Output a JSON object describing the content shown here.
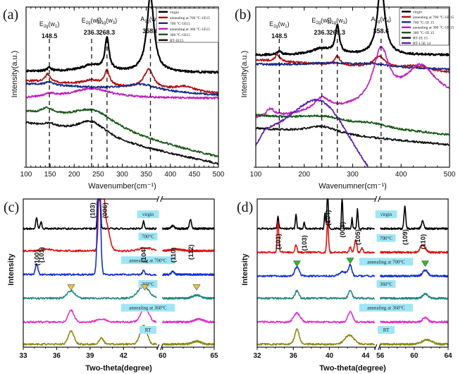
{
  "figure": {
    "panels": [
      "(a)",
      "(b)",
      "(c)",
      "(d)"
    ]
  },
  "chart_data": [
    {
      "id": "a",
      "type": "line",
      "panel_label": "(a)",
      "xlabel": "Wavenumber(cm⁻¹)",
      "ylabel": "Intensity(a.u.)",
      "xlim": [
        100,
        500
      ],
      "xticks": [
        100,
        150,
        200,
        250,
        300,
        350,
        400,
        450,
        500
      ],
      "grid": false,
      "legend_position": "top-right",
      "mode_lines": [
        {
          "x": 148.5,
          "mode": "E2g(w1)",
          "mode_base": "E",
          "mode_sub": "2g",
          "mode_arg": "(w",
          "mode_arg_sub": "1",
          "value": "148.5"
        },
        {
          "x": 236.3,
          "mode": "E2g(w2)",
          "mode_base": "E",
          "mode_sub": "2g",
          "mode_arg": "(w",
          "mode_arg_sub": "2",
          "value": "236.3"
        },
        {
          "x": 268.3,
          "mode": "E1g(w3)",
          "mode_base": "E",
          "mode_sub": "1g",
          "mode_arg": "(w",
          "mode_arg_sub": "3",
          "value": "268.3"
        },
        {
          "x": 358.6,
          "mode": "A1g(w4)",
          "mode_base": "A",
          "mode_sub": "1g",
          "mode_arg": "(w",
          "mode_arg_sub": "4",
          "value": "358.6"
        }
      ],
      "series": [
        {
          "name": "virgin",
          "color": "#000000",
          "baseline": 0.6,
          "peaks": [
            [
              148.5,
              0.02,
              5
            ],
            [
              236.3,
              0.04,
              25
            ],
            [
              268.3,
              0.2,
              5
            ],
            [
              358.6,
              0.48,
              9
            ]
          ],
          "slope": -0.01
        },
        {
          "name": "annealing at 700 °C-1E15",
          "color": "#b01010",
          "baseline": 0.54,
          "peaks": [
            [
              145,
              0.05,
              6
            ],
            [
              236.3,
              0.03,
              20
            ],
            [
              268.3,
              0.09,
              6
            ],
            [
              355,
              0.12,
              12
            ],
            [
              430,
              0.03,
              25
            ]
          ],
          "slope": -0.08
        },
        {
          "name": "700 °C-1E15",
          "color": "#1a2a8a",
          "baseline": 0.52,
          "peaks": [
            [
              148,
              0.02,
              10
            ],
            [
              340,
              0.04,
              40
            ]
          ],
          "slope": -0.07
        },
        {
          "name": "annealing at 360 °C-1E15",
          "color": "#c020c0",
          "baseline": 0.43,
          "peaks": [
            [
              150,
              0.02,
              15
            ],
            [
              236.3,
              0.06,
              50
            ]
          ],
          "slope": 0.0
        },
        {
          "name": "360 °C-1E15",
          "color": "#1a5a1a",
          "baseline": 0.33,
          "peaks": [
            [
              145,
              0.04,
              15
            ],
            [
              240,
              0.12,
              60
            ]
          ],
          "slope": -0.27
        },
        {
          "name": "RT-1E15",
          "color": "#111111",
          "baseline": 0.27,
          "peaks": [
            [
              150,
              0.02,
              15
            ],
            [
              236.3,
              0.1,
              40
            ]
          ],
          "slope": -0.25
        }
      ]
    },
    {
      "id": "b",
      "type": "line",
      "panel_label": "(b)",
      "xlabel": "Wavenumner(cm⁻¹)",
      "ylabel": "Intensity(a.u.)",
      "xlim": [
        100,
        500
      ],
      "xticks": [
        100,
        200,
        300,
        400,
        500
      ],
      "grid": false,
      "legend_position": "top-right",
      "mode_lines": [
        {
          "x": 148.5,
          "mode": "E2g(w1)",
          "mode_base": "E",
          "mode_sub": "2g",
          "mode_arg": "(w",
          "mode_arg_sub": "1",
          "value": "148.5"
        },
        {
          "x": 236.3,
          "mode": "E2g(w2)",
          "mode_base": "E",
          "mode_sub": "2g",
          "mode_arg": "(w",
          "mode_arg_sub": "2",
          "value": "236.3"
        },
        {
          "x": 268.3,
          "mode": "E1g(w3)",
          "mode_base": "E",
          "mode_sub": "1g",
          "mode_arg": "(w",
          "mode_arg_sub": "3",
          "value": "268.3"
        },
        {
          "x": 358.6,
          "mode": "A1g(w4)",
          "mode_base": "A",
          "mode_sub": "1g",
          "mode_arg": "(w",
          "mode_arg_sub": "4",
          "value": "358.6"
        }
      ],
      "series": [
        {
          "name": "virgin",
          "color": "#000000",
          "baseline": 0.7,
          "peaks": [
            [
              148.5,
              0.02,
              5
            ],
            [
              236.3,
              0.04,
              25
            ],
            [
              268.3,
              0.17,
              5
            ],
            [
              358.6,
              0.45,
              9
            ]
          ],
          "slope": 0.0
        },
        {
          "name": "annealing at 700 °C-1E 15",
          "color": "#b01010",
          "baseline": 0.67,
          "peaks": [
            [
              145,
              0.04,
              6
            ],
            [
              268.3,
              0.06,
              6
            ],
            [
              355,
              0.07,
              14
            ],
            [
              430,
              0.03,
              30
            ]
          ],
          "slope": -0.08
        },
        {
          "name": "700 °C-1E 15",
          "color": "#1a2a8a",
          "baseline": 0.64,
          "peaks": [
            [
              250,
              0.02,
              60
            ],
            [
              340,
              0.02,
              40
            ]
          ],
          "slope": -0.03
        },
        {
          "name": "annealing at 360 °C-1E 15",
          "color": "#c020c0",
          "baseline": 0.3,
          "peaks": [
            [
              130,
              0.05,
              10
            ],
            [
              236.3,
              0.08,
              20
            ],
            [
              358.6,
              0.33,
              20
            ],
            [
              440,
              0.22,
              40
            ]
          ],
          "slope": 0.12
        },
        {
          "name": "360 °C-1E 15",
          "color": "#1a5a1a",
          "baseline": 0.32,
          "peaks": [
            [
              240,
              0.04,
              60
            ],
            [
              340,
              0.02,
              30
            ]
          ],
          "slope": -0.12
        },
        {
          "name": "RT-1E 15",
          "color": "#111111",
          "baseline": 0.24,
          "peaks": [
            [
              236.3,
              0.05,
              40
            ]
          ],
          "slope": -0.1
        },
        {
          "name": "RT-1.5E 14",
          "color": "#5a20b0",
          "baseline": 0.05,
          "peaks": [
            [
              236.3,
              0.55,
              95
            ]
          ],
          "slope": -0.55
        }
      ]
    },
    {
      "id": "c",
      "type": "line",
      "panel_label": "(c)",
      "xlabel": "Two-theta(degree)",
      "ylabel": "Intensity",
      "xlim_segments": [
        [
          33,
          45
        ],
        [
          60,
          65
        ]
      ],
      "xticks": [
        33,
        36,
        39,
        42,
        60,
        65
      ],
      "axis_break": true,
      "grid": false,
      "hkl_labels": [
        {
          "x": 34.2,
          "label": "(100)",
          "level": 0.55
        },
        {
          "x": 34.6,
          "label": "(101)",
          "level": 0.57
        },
        {
          "x": 39.2,
          "label": "(103)",
          "level": 0.87
        },
        {
          "x": 40.3,
          "label": "(006)",
          "level": 0.87
        },
        {
          "x": 43.8,
          "label": "(104)",
          "level": 0.57
        },
        {
          "x": 61.0,
          "label": "(110)",
          "level": 0.57
        },
        {
          "x": 62.7,
          "label": "(112)",
          "level": 0.59
        }
      ],
      "markers": [
        {
          "x": 37.3,
          "level": 0.37,
          "color": "#f0c040"
        },
        {
          "x": 43.9,
          "level": 0.37,
          "color": "#f0c040"
        },
        {
          "x": 63.3,
          "level": 0.37,
          "color": "#f0c040"
        }
      ],
      "series": [
        {
          "name": "virgin",
          "label": "virgin",
          "color": "#000000",
          "offset": 0.8,
          "peaks": [
            [
              34.2,
              0.07,
              0.08
            ],
            [
              34.6,
              0.05,
              0.07
            ],
            [
              39.8,
              1.2,
              0.08
            ],
            [
              43.8,
              0.05,
              0.07
            ],
            [
              61.0,
              0.02,
              0.15
            ],
            [
              62.7,
              0.06,
              0.1
            ]
          ]
        },
        {
          "name": "700°C",
          "label": "700°C",
          "color": "#e01010",
          "offset": 0.65,
          "peaks": [
            [
              35,
              0.01,
              0.5
            ],
            [
              40.0,
              1.2,
              0.15
            ],
            [
              40.4,
              0.2,
              0.3
            ],
            [
              44,
              0.02,
              0.6
            ],
            [
              61.3,
              0.01,
              0.6
            ]
          ]
        },
        {
          "name": "annealing at 700°C",
          "label": "annealing at 700°C",
          "color": "#1030d0",
          "offset": 0.49,
          "peaks": [
            [
              34.2,
              0.07,
              0.12
            ],
            [
              39.8,
              0.75,
              0.13
            ],
            [
              43.8,
              0.03,
              0.1
            ],
            [
              61.0,
              0.02,
              0.15
            ]
          ]
        },
        {
          "name": "360°C",
          "label": "360°C",
          "color": "#208a80",
          "offset": 0.33,
          "peaks": [
            [
              37.3,
              0.05,
              0.35
            ],
            [
              43.8,
              0.08,
              0.5
            ],
            [
              63.3,
              0.02,
              0.4
            ]
          ]
        },
        {
          "name": "annealing at 360°C",
          "label": "annealing at 360°C",
          "color": "#e030d0",
          "offset": 0.17,
          "peaks": [
            [
              37.3,
              0.08,
              0.25
            ],
            [
              40.0,
              0.02,
              0.4
            ],
            [
              43.9,
              0.1,
              0.35
            ],
            [
              63.5,
              0.02,
              0.4
            ]
          ]
        },
        {
          "name": "RT",
          "label": "RT",
          "color": "#8a8a10",
          "offset": 0.02,
          "peaks": [
            [
              37.3,
              0.09,
              0.25
            ],
            [
              40.0,
              0.04,
              0.2
            ],
            [
              43.8,
              0.13,
              0.3
            ],
            [
              63.3,
              0.02,
              0.4
            ]
          ]
        }
      ]
    },
    {
      "id": "d",
      "type": "line",
      "panel_label": "(d)",
      "xlabel": "Two-theta(degree)",
      "ylabel": "Intensity",
      "xlim_segments": [
        [
          32,
          45
        ],
        [
          56,
          64
        ]
      ],
      "xticks": [
        32,
        36,
        40,
        44,
        56,
        60,
        64
      ],
      "axis_break": true,
      "grid": false,
      "hkl_labels": [
        {
          "x": 34.3,
          "label": "(101)",
          "level": 0.66
        },
        {
          "x": 37.2,
          "label": "(103)",
          "level": 0.65
        },
        {
          "x": 39.8,
          "label": "(104)",
          "level": 0.82
        },
        {
          "x": 41.4,
          "label": "(008)",
          "level": 0.74
        },
        {
          "x": 43.1,
          "label": "(105)",
          "level": 0.69
        },
        {
          "x": 58.9,
          "label": "(109)",
          "level": 0.69
        },
        {
          "x": 61.0,
          "label": "(110)",
          "level": 0.66
        }
      ],
      "markers": [
        {
          "x": 36.4,
          "level": 0.53,
          "color": "#20c020"
        },
        {
          "x": 42.3,
          "level": 0.55,
          "color": "#20c020"
        },
        {
          "x": 61.3,
          "level": 0.53,
          "color": "#20c020"
        }
      ],
      "series": [
        {
          "name": "virgin",
          "label": "virgin",
          "color": "#000000",
          "offset": 0.8,
          "peaks": [
            [
              34.3,
              0.08,
              0.08
            ],
            [
              36.3,
              0.1,
              0.07
            ],
            [
              37.2,
              0.04,
              0.07
            ],
            [
              39.5,
              0.1,
              0.07
            ],
            [
              39.8,
              0.32,
              0.07
            ],
            [
              41.4,
              0.24,
              0.06
            ],
            [
              42.5,
              0.07,
              0.06
            ],
            [
              43.1,
              0.13,
              0.07
            ],
            [
              58.9,
              0.15,
              0.1
            ],
            [
              61.0,
              0.05,
              0.15
            ]
          ]
        },
        {
          "name": "700°C",
          "label": "700°C",
          "color": "#e01010",
          "offset": 0.64,
          "peaks": [
            [
              34.3,
              0.21,
              0.09
            ],
            [
              36.3,
              0.05,
              0.1
            ],
            [
              39.8,
              0.21,
              0.09
            ],
            [
              42.3,
              0.04,
              0.1
            ],
            [
              42.9,
              0.09,
              0.12
            ],
            [
              43.6,
              0.03,
              0.1
            ],
            [
              61.0,
              0.05,
              0.3
            ]
          ]
        },
        {
          "name": "annealing at 700°C",
          "label": "annealing at 700°C",
          "color": "#1030d0",
          "offset": 0.48,
          "peaks": [
            [
              36.4,
              0.06,
              0.25
            ],
            [
              41.5,
              0.03,
              0.4
            ],
            [
              42.3,
              0.07,
              0.18
            ],
            [
              61.3,
              0.04,
              0.3
            ]
          ]
        },
        {
          "name": "360°C",
          "label": "360°C",
          "color": "#208a80",
          "offset": 0.33,
          "peaks": [
            [
              36.4,
              0.05,
              0.2
            ],
            [
              42.3,
              0.05,
              0.2
            ],
            [
              61.3,
              0.03,
              0.3
            ]
          ]
        },
        {
          "name": "annealing at 360°C",
          "label": "annealing at 360°C",
          "color": "#e030d0",
          "offset": 0.17,
          "peaks": [
            [
              36.4,
              0.06,
              0.35
            ],
            [
              42.3,
              0.07,
              0.25
            ],
            [
              61.3,
              0.03,
              0.3
            ]
          ]
        },
        {
          "name": "RT",
          "label": "RT",
          "color": "#8a8a10",
          "offset": 0.02,
          "peaks": [
            [
              36.4,
              0.1,
              0.25
            ],
            [
              42.2,
              0.06,
              0.5
            ],
            [
              61.5,
              0.03,
              0.6
            ]
          ]
        }
      ]
    }
  ]
}
